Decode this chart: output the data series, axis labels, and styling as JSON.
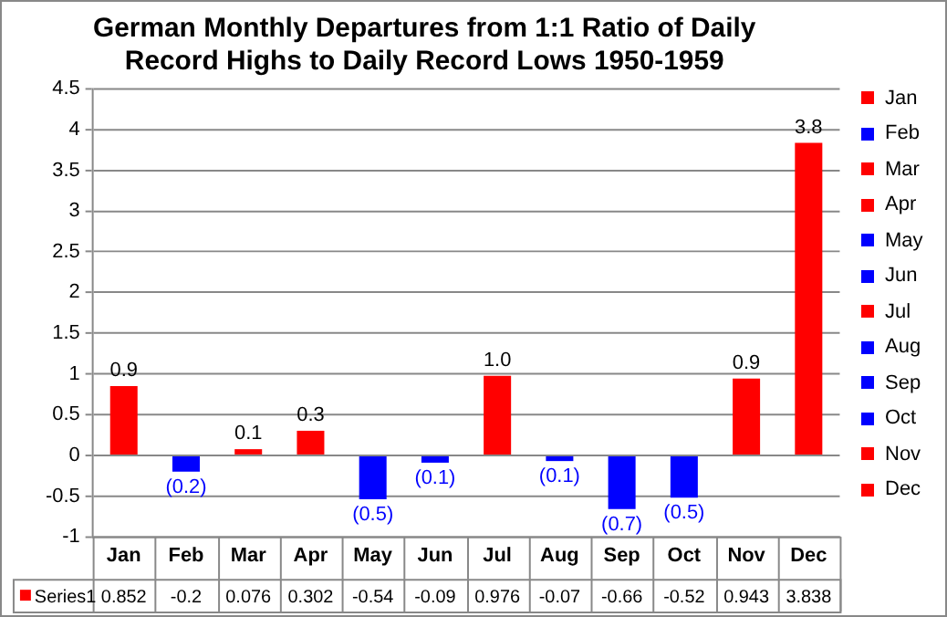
{
  "chart_data": {
    "type": "bar",
    "title": "German Monthly Departures from 1:1 Ratio of Daily Record Highs to Daily Record Lows 1950-1959",
    "categories": [
      "Jan",
      "Feb",
      "Mar",
      "Apr",
      "May",
      "Jun",
      "Jul",
      "Aug",
      "Sep",
      "Oct",
      "Nov",
      "Dec"
    ],
    "series": [
      {
        "name": "Series1",
        "colors": [
          "#ff0000",
          "#0000ff",
          "#ff0000",
          "#ff0000",
          "#0000ff",
          "#0000ff",
          "#ff0000",
          "#0000ff",
          "#0000ff",
          "#0000ff",
          "#ff0000",
          "#ff0000"
        ],
        "values": [
          0.852,
          -0.2,
          0.076,
          0.302,
          -0.54,
          -0.09,
          0.976,
          -0.07,
          -0.66,
          -0.52,
          0.943,
          3.838
        ]
      }
    ],
    "annotations": [
      {
        "text": "0.9",
        "x": "Jan",
        "y": 0.852
      },
      {
        "text": "(0.2)",
        "x": "Feb",
        "y": -0.2
      },
      {
        "text": "0.1",
        "x": "Mar",
        "y": 0.076
      },
      {
        "text": "0.3",
        "x": "Apr",
        "y": 0.302
      },
      {
        "text": "(0.5)",
        "x": "May",
        "y": -0.54
      },
      {
        "text": "(0.1)",
        "x": "Jun",
        "y": -0.09
      },
      {
        "text": "1.0",
        "x": "Jul",
        "y": 0.976
      },
      {
        "text": "(0.1)",
        "x": "Aug",
        "y": -0.07
      },
      {
        "text": "(0.7)",
        "x": "Sep",
        "y": -0.66
      },
      {
        "text": "(0.5)",
        "x": "Oct",
        "y": -0.52
      },
      {
        "text": "0.9",
        "x": "Nov",
        "y": 0.943
      },
      {
        "text": "3.8",
        "x": "Dec",
        "y": 3.838
      }
    ],
    "ylim": [
      -1,
      4.5
    ],
    "yticks": [
      -1,
      -0.5,
      0,
      0.5,
      1,
      1.5,
      2,
      2.5,
      3,
      3.5,
      4,
      4.5
    ],
    "grid": "y",
    "legend": "bottom left",
    "data_labels": true
  }
}
